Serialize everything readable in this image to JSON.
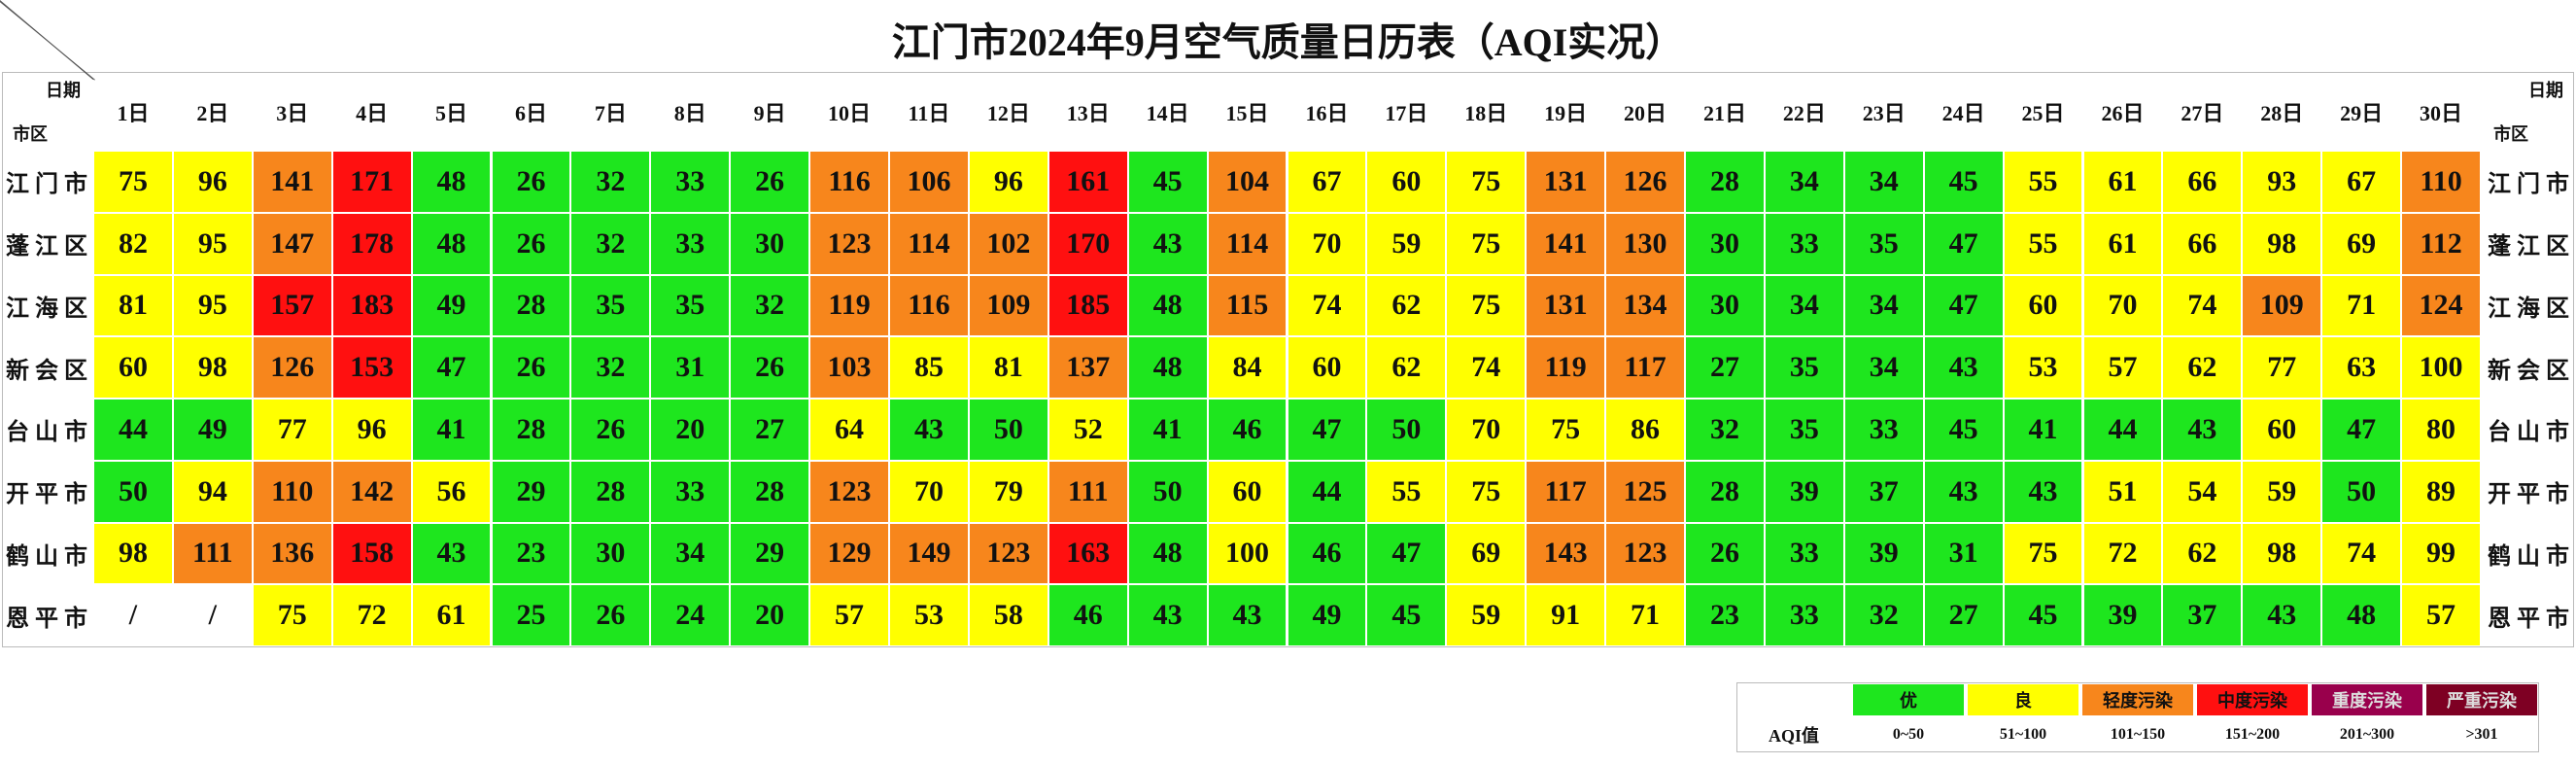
{
  "title": "江门市2024年9月空气质量日历表（AQI实况）",
  "corner": {
    "top": "日期",
    "bottom": "市区"
  },
  "table": {
    "columns": [
      "1日",
      "2日",
      "3日",
      "4日",
      "5日",
      "6日",
      "7日",
      "8日",
      "9日",
      "10日",
      "11日",
      "12日",
      "13日",
      "14日",
      "15日",
      "16日",
      "17日",
      "18日",
      "19日",
      "20日",
      "21日",
      "22日",
      "23日",
      "24日",
      "25日",
      "26日",
      "27日",
      "28日",
      "29日",
      "30日"
    ],
    "rows": [
      {
        "name": "江门市",
        "values": [
          75,
          96,
          141,
          171,
          48,
          26,
          32,
          33,
          26,
          116,
          106,
          96,
          161,
          45,
          104,
          67,
          60,
          75,
          131,
          126,
          28,
          34,
          34,
          45,
          55,
          61,
          66,
          93,
          67,
          110
        ]
      },
      {
        "name": "蓬江区",
        "values": [
          82,
          95,
          147,
          178,
          48,
          26,
          32,
          33,
          30,
          123,
          114,
          102,
          170,
          43,
          114,
          70,
          59,
          75,
          141,
          130,
          30,
          33,
          35,
          47,
          55,
          61,
          66,
          98,
          69,
          112
        ]
      },
      {
        "name": "江海区",
        "values": [
          81,
          95,
          157,
          183,
          49,
          28,
          35,
          35,
          32,
          119,
          116,
          109,
          185,
          48,
          115,
          74,
          62,
          75,
          131,
          134,
          30,
          34,
          34,
          47,
          60,
          70,
          74,
          109,
          71,
          124
        ]
      },
      {
        "name": "新会区",
        "values": [
          60,
          98,
          126,
          153,
          47,
          26,
          32,
          31,
          26,
          103,
          85,
          81,
          137,
          48,
          84,
          60,
          62,
          74,
          119,
          117,
          27,
          35,
          34,
          43,
          53,
          57,
          62,
          77,
          63,
          100
        ]
      },
      {
        "name": "台山市",
        "values": [
          44,
          49,
          77,
          96,
          41,
          28,
          26,
          20,
          27,
          64,
          43,
          50,
          52,
          41,
          46,
          47,
          50,
          70,
          75,
          86,
          32,
          35,
          33,
          45,
          41,
          44,
          43,
          60,
          47,
          80
        ]
      },
      {
        "name": "开平市",
        "values": [
          50,
          94,
          110,
          142,
          56,
          29,
          28,
          33,
          28,
          123,
          70,
          79,
          111,
          50,
          60,
          44,
          55,
          75,
          117,
          125,
          28,
          39,
          37,
          43,
          43,
          51,
          54,
          59,
          50,
          89
        ]
      },
      {
        "name": "鹤山市",
        "values": [
          98,
          111,
          136,
          158,
          43,
          23,
          30,
          34,
          29,
          129,
          149,
          123,
          163,
          48,
          100,
          46,
          47,
          69,
          143,
          123,
          26,
          33,
          39,
          31,
          75,
          72,
          62,
          98,
          74,
          99
        ]
      },
      {
        "name": "恩平市",
        "values": [
          "/",
          "/",
          75,
          72,
          61,
          25,
          26,
          24,
          20,
          57,
          53,
          58,
          46,
          43,
          43,
          49,
          45,
          59,
          91,
          71,
          23,
          33,
          32,
          27,
          45,
          39,
          37,
          43,
          48,
          57
        ]
      }
    ]
  },
  "legend": {
    "label": "AQI值",
    "levels": [
      {
        "name": "优",
        "range": "0~50",
        "color": "#1ee61e"
      },
      {
        "name": "良",
        "range": "51~100",
        "color": "#ffff00"
      },
      {
        "name": "轻度污染",
        "range": "101~150",
        "color": "#f7861c"
      },
      {
        "name": "中度污染",
        "range": "151~200",
        "color": "#ff1010"
      },
      {
        "name": "重度污染",
        "range": "201~300",
        "color": "#99004c"
      },
      {
        "name": "严重污染",
        "range": ">301",
        "color": "#7e0023"
      }
    ]
  }
}
